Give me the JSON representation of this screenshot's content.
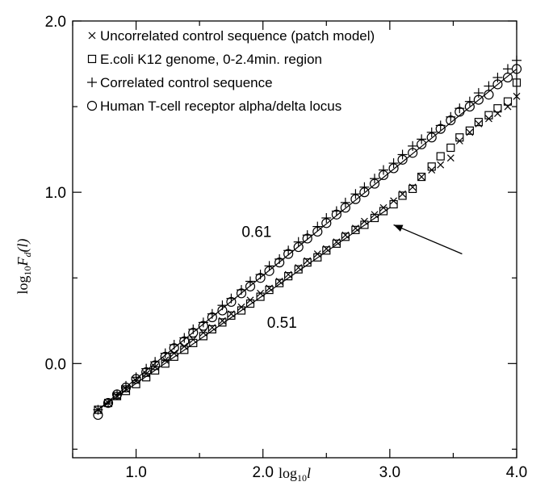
{
  "chart_data": {
    "type": "scatter",
    "xlabel_base": "log",
    "xlabel_sub": "10",
    "xlabel_var": "l",
    "ylabel_base": "log",
    "ylabel_sub": "10",
    "ylabel_var": "F",
    "ylabel_var_sub": "d",
    "ylabel_arg": "(l)",
    "xlim": [
      0.5,
      4.0
    ],
    "ylim": [
      -0.55,
      2.0
    ],
    "x_ticks": [
      {
        "value": 1.0,
        "label": "1.0"
      },
      {
        "value": 2.0,
        "label": "2.0"
      },
      {
        "value": 3.0,
        "label": "3.0"
      },
      {
        "value": 4.0,
        "label": "4.0"
      }
    ],
    "y_ticks": [
      {
        "value": 0.0,
        "label": "0.0"
      },
      {
        "value": 1.0,
        "label": "1.0"
      },
      {
        "value": 2.0,
        "label": "2.0"
      }
    ],
    "legend_position": "top-left",
    "series": [
      {
        "name": "Uncorrelated control sequence (patch model)",
        "marker": "x",
        "x": [
          0.7,
          0.78,
          0.85,
          0.92,
          1.0,
          1.08,
          1.15,
          1.23,
          1.3,
          1.38,
          1.45,
          1.53,
          1.6,
          1.68,
          1.75,
          1.83,
          1.9,
          1.98,
          2.05,
          2.13,
          2.2,
          2.28,
          2.35,
          2.43,
          2.5,
          2.58,
          2.65,
          2.73,
          2.8,
          2.88,
          2.95,
          3.03,
          3.1,
          3.18,
          3.25,
          3.33,
          3.4,
          3.48,
          3.55,
          3.63,
          3.7,
          3.78,
          3.85,
          3.93,
          4.0
        ],
        "y": [
          -0.27,
          -0.23,
          -0.19,
          -0.15,
          -0.1,
          -0.06,
          -0.02,
          0.02,
          0.06,
          0.1,
          0.14,
          0.18,
          0.21,
          0.25,
          0.29,
          0.33,
          0.37,
          0.41,
          0.44,
          0.48,
          0.52,
          0.56,
          0.6,
          0.64,
          0.67,
          0.71,
          0.75,
          0.79,
          0.83,
          0.87,
          0.91,
          0.95,
          0.99,
          1.03,
          1.09,
          1.13,
          1.16,
          1.2,
          1.3,
          1.35,
          1.4,
          1.43,
          1.46,
          1.5,
          1.56
        ]
      },
      {
        "name": "E.coli K12 genome, 0-2.4min. region",
        "marker": "square",
        "x": [
          0.7,
          0.78,
          0.85,
          0.92,
          1.0,
          1.08,
          1.15,
          1.23,
          1.3,
          1.38,
          1.45,
          1.53,
          1.6,
          1.68,
          1.75,
          1.83,
          1.9,
          1.98,
          2.05,
          2.13,
          2.2,
          2.28,
          2.35,
          2.43,
          2.5,
          2.58,
          2.65,
          2.73,
          2.8,
          2.88,
          2.95,
          3.03,
          3.1,
          3.18,
          3.25,
          3.33,
          3.4,
          3.48,
          3.55,
          3.63,
          3.7,
          3.78,
          3.85,
          3.93,
          4.0
        ],
        "y": [
          -0.27,
          -0.23,
          -0.19,
          -0.16,
          -0.12,
          -0.08,
          -0.04,
          0.0,
          0.04,
          0.08,
          0.12,
          0.16,
          0.2,
          0.24,
          0.28,
          0.31,
          0.35,
          0.39,
          0.43,
          0.47,
          0.51,
          0.55,
          0.59,
          0.62,
          0.66,
          0.7,
          0.74,
          0.78,
          0.81,
          0.85,
          0.89,
          0.93,
          0.98,
          1.02,
          1.09,
          1.15,
          1.21,
          1.26,
          1.32,
          1.36,
          1.41,
          1.45,
          1.49,
          1.53,
          1.64
        ]
      },
      {
        "name": "Correlated control sequence",
        "marker": "plus",
        "x": [
          0.7,
          0.78,
          0.85,
          0.92,
          1.0,
          1.08,
          1.15,
          1.23,
          1.3,
          1.38,
          1.45,
          1.53,
          1.6,
          1.68,
          1.75,
          1.83,
          1.9,
          1.98,
          2.05,
          2.13,
          2.2,
          2.28,
          2.35,
          2.43,
          2.5,
          2.58,
          2.65,
          2.73,
          2.8,
          2.88,
          2.95,
          3.03,
          3.1,
          3.18,
          3.25,
          3.33,
          3.4,
          3.48,
          3.55,
          3.63,
          3.7,
          3.78,
          3.85,
          3.93,
          4.0
        ],
        "y": [
          -0.27,
          -0.23,
          -0.18,
          -0.13,
          -0.08,
          -0.03,
          0.01,
          0.06,
          0.11,
          0.15,
          0.2,
          0.24,
          0.29,
          0.34,
          0.38,
          0.43,
          0.48,
          0.52,
          0.57,
          0.61,
          0.66,
          0.71,
          0.75,
          0.8,
          0.85,
          0.89,
          0.94,
          0.99,
          1.03,
          1.08,
          1.13,
          1.17,
          1.22,
          1.27,
          1.31,
          1.35,
          1.39,
          1.44,
          1.49,
          1.53,
          1.58,
          1.62,
          1.67,
          1.72,
          1.77
        ]
      },
      {
        "name": "Human T-cell receptor alpha/delta locus",
        "marker": "circle",
        "x": [
          0.7,
          0.78,
          0.85,
          0.92,
          1.0,
          1.08,
          1.15,
          1.23,
          1.3,
          1.38,
          1.45,
          1.53,
          1.6,
          1.68,
          1.75,
          1.83,
          1.9,
          1.98,
          2.05,
          2.13,
          2.2,
          2.28,
          2.35,
          2.43,
          2.5,
          2.58,
          2.65,
          2.73,
          2.8,
          2.88,
          2.95,
          3.03,
          3.1,
          3.18,
          3.25,
          3.33,
          3.4,
          3.48,
          3.55,
          3.63,
          3.7,
          3.78,
          3.85,
          3.93,
          4.0
        ],
        "y": [
          -0.3,
          -0.23,
          -0.18,
          -0.14,
          -0.09,
          -0.05,
          -0.01,
          0.04,
          0.09,
          0.13,
          0.18,
          0.22,
          0.27,
          0.31,
          0.36,
          0.41,
          0.45,
          0.5,
          0.54,
          0.59,
          0.64,
          0.68,
          0.73,
          0.77,
          0.82,
          0.87,
          0.91,
          0.96,
          1.0,
          1.05,
          1.1,
          1.14,
          1.19,
          1.23,
          1.28,
          1.32,
          1.37,
          1.42,
          1.47,
          1.5,
          1.54,
          1.57,
          1.63,
          1.67,
          1.72
        ]
      }
    ],
    "fit_lines": [
      {
        "slope_label": "0.61",
        "x": [
          0.7,
          4.0
        ],
        "y": [
          -0.27,
          1.72
        ]
      },
      {
        "slope_label": "0.51",
        "x": [
          0.7,
          3.0
        ],
        "y": [
          -0.27,
          0.91
        ]
      }
    ],
    "annotations": [
      {
        "text": "0.61",
        "x": 1.95,
        "y": 0.74
      },
      {
        "text": "0.51",
        "x": 2.15,
        "y": 0.21
      }
    ],
    "arrow": {
      "from": [
        3.57,
        0.64
      ],
      "to": [
        3.03,
        0.81
      ]
    }
  }
}
